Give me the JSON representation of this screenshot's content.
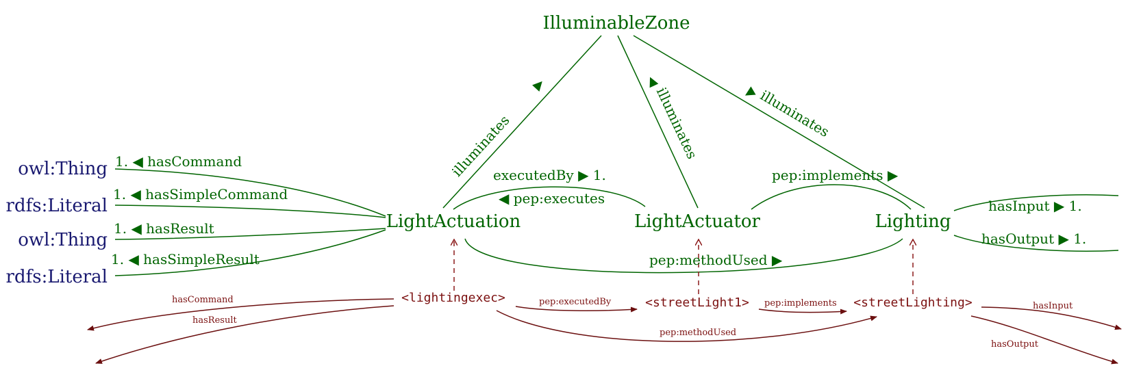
{
  "classes": {
    "illuminable_zone": "IlluminableZone",
    "light_actuation": "LightActuation",
    "light_actuator": "LightActuator",
    "lighting": "Lighting",
    "owl_thing_1": "owl:Thing",
    "rdfs_literal_1": "rdfs:Literal",
    "owl_thing_2": "owl:Thing",
    "rdfs_literal_2": "rdfs:Literal"
  },
  "relations": {
    "illuminates_1": "illuminates",
    "illuminates_2": "illuminates",
    "illuminates_3": "illuminates",
    "has_command": "1. ◀ hasCommand",
    "has_simple_command": "1. ◀ hasSimpleCommand",
    "has_result": "1. ◀ hasResult",
    "has_simple_result": "1. ◀ hasSimpleResult",
    "executed_by": "executedBy ▶ 1.",
    "pep_executes": "◀ pep:executes",
    "pep_implements": "pep:implements ▶",
    "pep_method_used": "pep:methodUsed ▶",
    "has_input": "hasInput ▶ 1.",
    "has_output": "hasOutput ▶ 1."
  },
  "individuals": {
    "lightingexec": "<lightingexec>",
    "street_light_1": "<streetLight1>",
    "street_lighting": "<streetLighting>"
  },
  "instance_relations": {
    "has_command": "hasCommand",
    "has_result": "hasResult",
    "pep_executed_by": "pep:executedBy",
    "pep_implements": "pep:implements",
    "pep_method_used": "pep:methodUsed",
    "has_input": "hasInput",
    "has_output": "hasOutput"
  },
  "colors": {
    "class": "#006400",
    "datatype": "#191970",
    "individual": "#7b1010"
  }
}
